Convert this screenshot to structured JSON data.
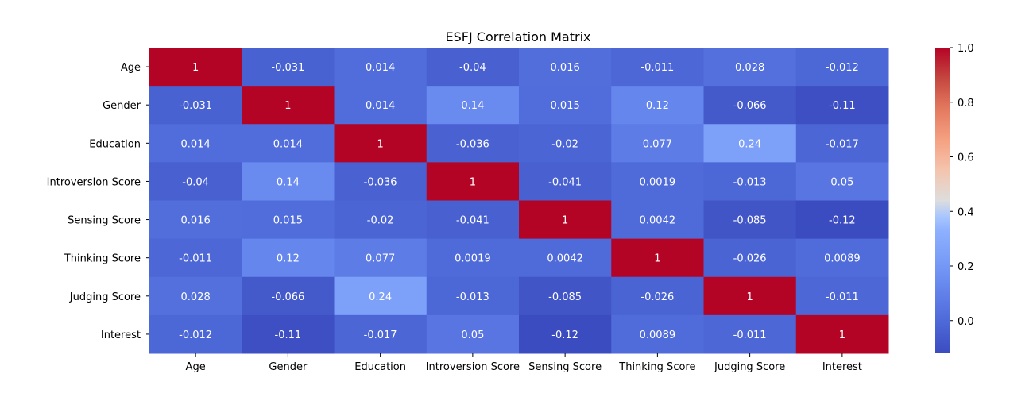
{
  "chart_data": {
    "type": "heatmap",
    "title": "ESFJ Correlation Matrix",
    "x_labels": [
      "Age",
      "Gender",
      "Education",
      "Introversion Score",
      "Sensing Score",
      "Thinking Score",
      "Judging Score",
      "Interest"
    ],
    "y_labels": [
      "Age",
      "Gender",
      "Education",
      "Introversion Score",
      "Sensing Score",
      "Thinking Score",
      "Judging Score",
      "Interest"
    ],
    "values": [
      [
        1,
        -0.031,
        0.014,
        -0.04,
        0.016,
        -0.011,
        0.028,
        -0.012
      ],
      [
        -0.031,
        1,
        0.014,
        0.14,
        0.015,
        0.12,
        -0.066,
        -0.11
      ],
      [
        0.014,
        0.014,
        1,
        -0.036,
        -0.02,
        0.077,
        0.24,
        -0.017
      ],
      [
        -0.04,
        0.14,
        -0.036,
        1,
        -0.041,
        0.0019,
        -0.013,
        0.05
      ],
      [
        0.016,
        0.015,
        -0.02,
        -0.041,
        1,
        0.0042,
        -0.085,
        -0.12
      ],
      [
        -0.011,
        0.12,
        0.077,
        0.0019,
        0.0042,
        1,
        -0.026,
        0.0089
      ],
      [
        0.028,
        -0.066,
        0.24,
        -0.013,
        -0.085,
        -0.026,
        1,
        -0.011
      ],
      [
        -0.012,
        -0.11,
        -0.017,
        0.05,
        -0.12,
        0.0089,
        -0.011,
        1
      ]
    ],
    "colormap": "coolwarm",
    "vmin": -0.12,
    "vmax": 1,
    "colorbar_ticks": [
      "0.0",
      "0.2",
      "0.4",
      "0.6",
      "0.8",
      "1.0"
    ],
    "colorbar_tick_values": [
      0,
      0.2,
      0.4,
      0.6,
      0.8,
      1.0
    ]
  }
}
